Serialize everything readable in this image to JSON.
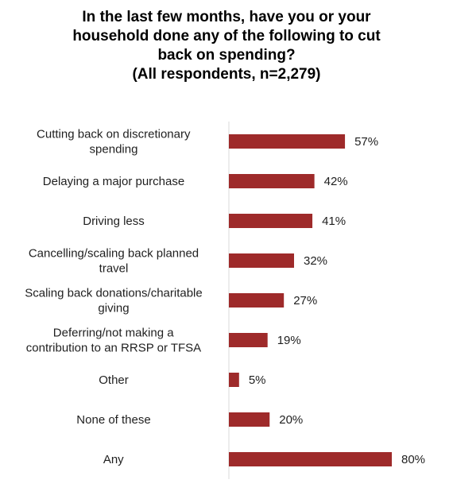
{
  "chart_data": {
    "type": "bar",
    "orientation": "horizontal",
    "title_lines": [
      "In the last few months, have you or your",
      "household done any of the following to cut",
      "back on spending?",
      "(All respondents, n=2,279)"
    ],
    "categories": [
      [
        "Cutting back on discretionary",
        "spending"
      ],
      [
        "Delaying a major purchase"
      ],
      [
        "Driving less"
      ],
      [
        "Cancelling/scaling back planned",
        "travel"
      ],
      [
        "Scaling back donations/charitable",
        "giving"
      ],
      [
        "Deferring/not making a",
        "contribution to an RRSP or TFSA"
      ],
      [
        "Other"
      ],
      [
        "None of these"
      ],
      [
        "Any"
      ]
    ],
    "values": [
      57,
      42,
      41,
      32,
      27,
      19,
      5,
      20,
      80
    ],
    "value_labels": [
      "57%",
      "42%",
      "41%",
      "32%",
      "27%",
      "19%",
      "5%",
      "20%",
      "80%"
    ],
    "xlim": [
      0,
      100
    ],
    "grid": false,
    "legend": "none",
    "bar_color": "#9e2a2a",
    "axis_color": "#d9d9d9"
  }
}
